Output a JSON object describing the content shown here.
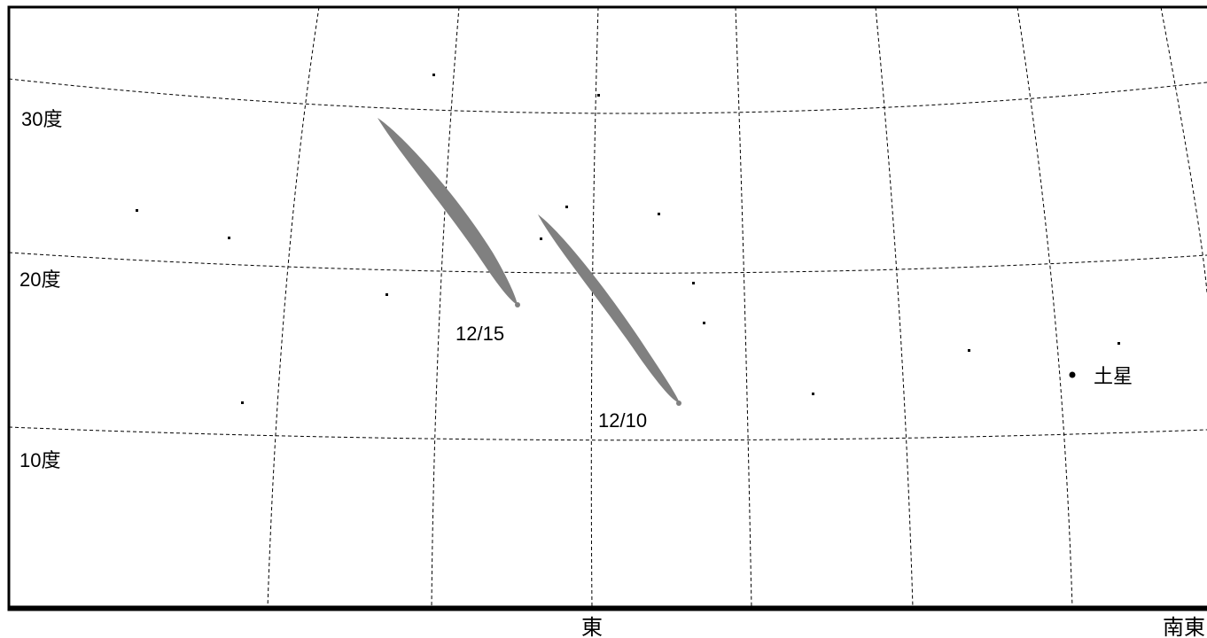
{
  "chart_data": {
    "type": "sky-map",
    "altitude_labels": [
      {
        "text": "30度",
        "value": 30
      },
      {
        "text": "20度",
        "value": 20
      },
      {
        "text": "10度",
        "value": 10
      }
    ],
    "direction_labels": [
      {
        "text": "東"
      },
      {
        "text": "南東"
      }
    ],
    "comet_positions": [
      {
        "date": "12/15"
      },
      {
        "date": "12/10"
      }
    ],
    "planets": [
      {
        "name": "土星"
      }
    ],
    "colors": {
      "comet": "#808080",
      "grid": "#000000",
      "horizon": "#000000",
      "background": "#ffffff"
    }
  }
}
